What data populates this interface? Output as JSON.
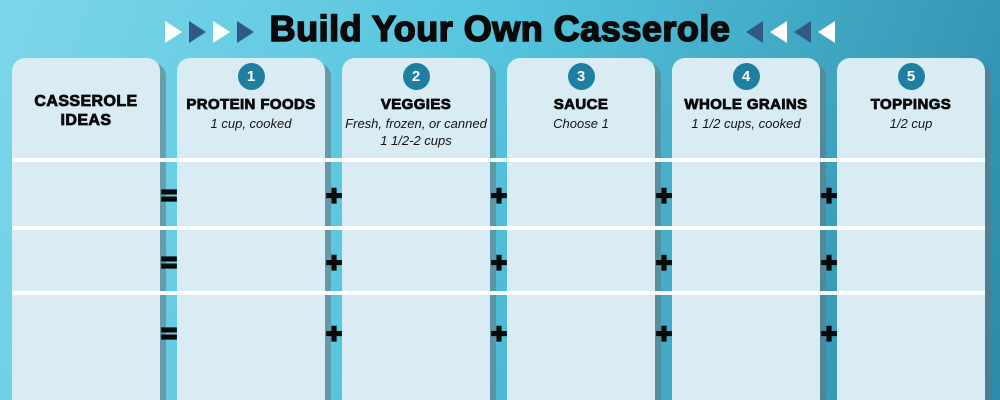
{
  "header": {
    "title": "Build Your Own Casserole",
    "left_arrows": [
      "white",
      "navy",
      "white",
      "navy"
    ],
    "right_arrows": [
      "navy",
      "white",
      "navy",
      "white"
    ]
  },
  "colors": {
    "background_gradient_start": "#7cd6ea",
    "background_gradient_end": "#2b8aa9",
    "card_background": "#d9ebf3",
    "badge_teal": "#1e7fa0",
    "arrow_navy": "#2f5a82",
    "arrow_white": "#ffffff",
    "text_black": "#0a0a0a",
    "row_line_white": "#ffffff"
  },
  "columns": [
    {
      "badge": "",
      "title": "CASSEROLE IDEAS",
      "subtitle": ""
    },
    {
      "badge": "1",
      "title": "PROTEIN FOODS",
      "subtitle": "1 cup, cooked"
    },
    {
      "badge": "2",
      "title": "VEGGIES",
      "subtitle": "Fresh, frozen, or canned\n1 1/2-2 cups"
    },
    {
      "badge": "3",
      "title": "SAUCE",
      "subtitle": "Choose 1"
    },
    {
      "badge": "4",
      "title": "WHOLE GRAINS",
      "subtitle": "1 1/2 cups, cooked"
    },
    {
      "badge": "5",
      "title": "TOPPINGS",
      "subtitle": "1/2 cup"
    }
  ],
  "rows": [
    {
      "ops": [
        "=",
        "+",
        "+",
        "+",
        "+"
      ]
    },
    {
      "ops": [
        "=",
        "+",
        "+",
        "+",
        "+"
      ]
    },
    {
      "ops": [
        "=",
        "+",
        "+",
        "+",
        "+"
      ]
    }
  ]
}
